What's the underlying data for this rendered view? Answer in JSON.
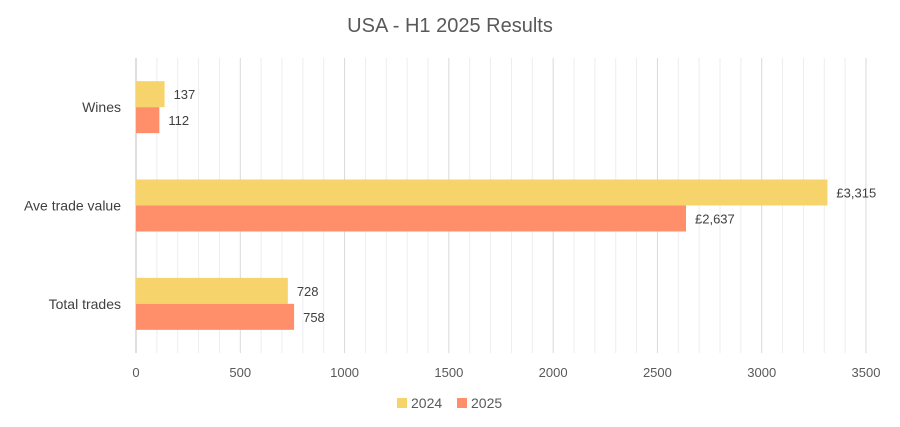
{
  "chart_data": {
    "type": "bar",
    "orientation": "horizontal",
    "title": "USA - H1 2025 Results",
    "categories": [
      "Wines",
      "Ave trade value",
      "Total trades"
    ],
    "series": [
      {
        "name": "2024",
        "color": "#F6D46B",
        "values": [
          137,
          3315,
          728
        ],
        "labels": [
          "137",
          "£3,315",
          "728"
        ]
      },
      {
        "name": "2025",
        "color": "#FF8F6B",
        "values": [
          112,
          2637,
          758
        ],
        "labels": [
          "112",
          "£2,637",
          "758"
        ]
      }
    ],
    "xlim": [
      0,
      3500
    ],
    "xticks": [
      0,
      500,
      1000,
      1500,
      2000,
      2500,
      3000,
      3500
    ],
    "xtick_labels": [
      "0",
      "500",
      "1000",
      "1500",
      "2000",
      "2500",
      "3000",
      "3500"
    ],
    "xlabel": "",
    "ylabel": "",
    "grid": "vertical-major-and-minor",
    "legend": "bottom"
  }
}
